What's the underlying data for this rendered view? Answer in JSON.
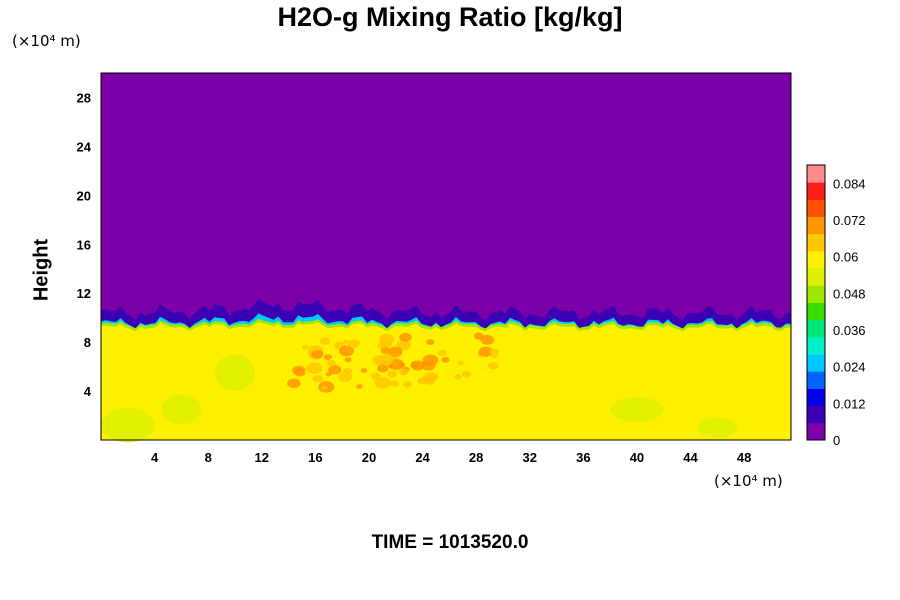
{
  "chart_data": {
    "type": "heatmap",
    "title": "H2O-g Mixing Ratio [kg/kg]",
    "ylabel": "Height",
    "x_unit_label": "(×10⁴ m)",
    "y_unit_label": "(×10⁴ m)",
    "footer": "TIME = 1013520.0",
    "xlim": [
      0,
      51.5
    ],
    "ylim": [
      0,
      30
    ],
    "x_ticks": [
      4,
      8,
      12,
      16,
      20,
      24,
      28,
      32,
      36,
      40,
      44,
      48
    ],
    "y_ticks": [
      4,
      8,
      12,
      16,
      20,
      24,
      28
    ],
    "x_tick_labels": [
      "4",
      "8",
      "12",
      "16",
      "20",
      "24",
      "28",
      "32",
      "36",
      "40",
      "44",
      "48"
    ],
    "y_tick_labels": [
      "4",
      "8",
      "12",
      "16",
      "20",
      "24",
      "28"
    ],
    "colorbar": {
      "range": [
        0,
        0.09
      ],
      "ticks": [
        0,
        0.012,
        0.024,
        0.036,
        0.048,
        0.06,
        0.072,
        0.084
      ],
      "tick_labels": [
        "0",
        "0.012",
        "0.024",
        "0.036",
        "0.048",
        "0.06",
        "0.072",
        "0.084"
      ],
      "colors": [
        "#7b00a8",
        "#3c00b4",
        "#0000e6",
        "#0064ff",
        "#00c8ff",
        "#00f0c8",
        "#00e678",
        "#3cdc00",
        "#a0e600",
        "#dcf000",
        "#fff000",
        "#ffc800",
        "#ff9600",
        "#ff5000",
        "#ff1e1e",
        "#ff8c8c"
      ]
    },
    "field_summary": {
      "dry_layer_value": 0.0,
      "moist_layer_value": 0.06,
      "moist_layer_top": 9.2,
      "transition_top": 11,
      "high_value_region": {
        "x_range": [
          14,
          30
        ],
        "y_range": [
          4,
          8
        ],
        "value": 0.072
      }
    },
    "grid": false
  }
}
